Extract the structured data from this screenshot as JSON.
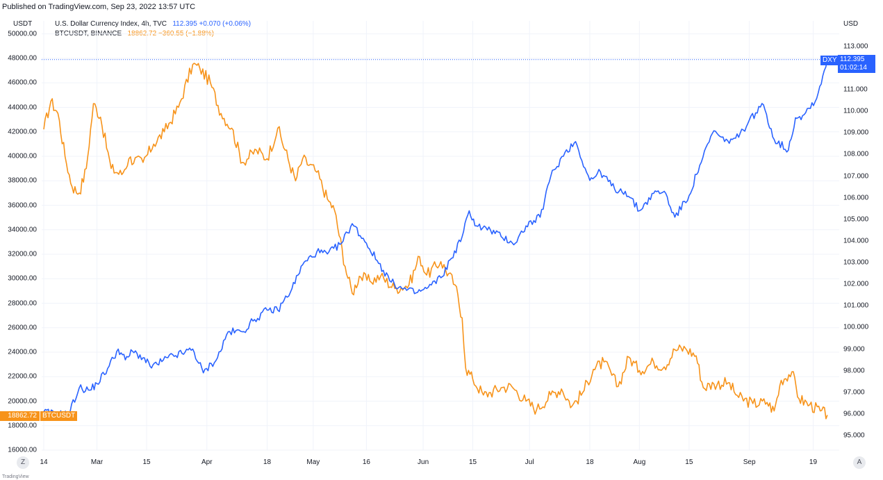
{
  "published": "Published on TradingView.com, Sep 23, 2022 13:57 UTC",
  "footer": "TradingView",
  "unit_left": "USDT",
  "unit_right": "USD",
  "corner_left": "Z",
  "corner_right": "A",
  "legend": {
    "dxy": {
      "name": "U.S. Dollar Currency Index, 4h, TVC",
      "value": "112.395 +0.070 (+0.06%)"
    },
    "btc": {
      "name": "BTCUSDT, BINANCE",
      "value": "18862.72 −360.55 (−1.88%)"
    }
  },
  "badges": {
    "btc_value": "18862.72",
    "btc_name": "BTCUSDT",
    "dxy_name": "DXY",
    "dxy_value": "112.395",
    "dxy_timer": "01:02:14"
  },
  "colors": {
    "dxy": "#2962ff",
    "btc": "#f7931a",
    "grid": "#f0f3fa"
  },
  "chart_data": {
    "type": "line",
    "title": "",
    "x_labels": [
      "14",
      "Mar",
      "15",
      "Apr",
      "18",
      "May",
      "16",
      "Jun",
      "15",
      "Jul",
      "18",
      "Aug",
      "15",
      "Sep",
      "19"
    ],
    "x_dates": [
      "2022-02-14",
      "2022-03-01",
      "2022-03-15",
      "2022-04-01",
      "2022-04-18",
      "2022-05-01",
      "2022-05-16",
      "2022-06-01",
      "2022-06-15",
      "2022-07-01",
      "2022-07-18",
      "2022-08-01",
      "2022-08-15",
      "2022-09-01",
      "2022-09-19"
    ],
    "y_left": {
      "label": "USDT",
      "range": [
        16000,
        50000
      ],
      "ticks": [
        "16000.00",
        "18000.00",
        "20000.00",
        "22000.00",
        "24000.00",
        "26000.00",
        "28000.00",
        "30000.00",
        "32000.00",
        "34000.00",
        "36000.00",
        "38000.00",
        "40000.00",
        "42000.00",
        "44000.00",
        "46000.00",
        "48000.00",
        "50000.00"
      ]
    },
    "y_right": {
      "label": "USD",
      "range": [
        94.5,
        114.5
      ],
      "ticks": [
        "95.000",
        "96.000",
        "97.000",
        "98.000",
        "99.000",
        "100.000",
        "101.000",
        "102.000",
        "103.000",
        "104.000",
        "105.000",
        "106.000",
        "107.000",
        "108.000",
        "109.000",
        "110.000",
        "111.000",
        "112.000",
        "113.000"
      ]
    },
    "series": [
      {
        "name": "BTCUSDT",
        "axis": "left",
        "x": [
          "2022-02-14",
          "2022-02-16",
          "2022-02-18",
          "2022-02-20",
          "2022-02-22",
          "2022-02-24",
          "2022-02-26",
          "2022-02-28",
          "2022-03-02",
          "2022-03-05",
          "2022-03-08",
          "2022-03-10",
          "2022-03-14",
          "2022-03-17",
          "2022-03-20",
          "2022-03-24",
          "2022-03-28",
          "2022-03-30",
          "2022-04-02",
          "2022-04-05",
          "2022-04-08",
          "2022-04-11",
          "2022-04-15",
          "2022-04-18",
          "2022-04-21",
          "2022-04-26",
          "2022-04-28",
          "2022-05-02",
          "2022-05-05",
          "2022-05-07",
          "2022-05-10",
          "2022-05-12",
          "2022-05-14",
          "2022-05-17",
          "2022-05-20",
          "2022-05-24",
          "2022-05-28",
          "2022-05-31",
          "2022-06-02",
          "2022-06-06",
          "2022-06-10",
          "2022-06-12",
          "2022-06-13",
          "2022-06-15",
          "2022-06-18",
          "2022-06-20",
          "2022-06-23",
          "2022-06-26",
          "2022-06-30",
          "2022-07-03",
          "2022-07-07",
          "2022-07-10",
          "2022-07-13",
          "2022-07-16",
          "2022-07-19",
          "2022-07-22",
          "2022-07-26",
          "2022-07-29",
          "2022-08-01",
          "2022-08-05",
          "2022-08-08",
          "2022-08-11",
          "2022-08-14",
          "2022-08-17",
          "2022-08-19",
          "2022-08-22",
          "2022-08-26",
          "2022-08-29",
          "2022-09-02",
          "2022-09-06",
          "2022-09-08",
          "2022-09-10",
          "2022-09-13",
          "2022-09-15",
          "2022-09-18",
          "2022-09-21",
          "2022-09-23"
        ],
        "y": [
          42200,
          44500,
          43500,
          40000,
          37500,
          37000,
          39000,
          44300,
          43200,
          39000,
          38500,
          39800,
          39500,
          41000,
          42000,
          44000,
          47500,
          47200,
          46000,
          43500,
          42300,
          39500,
          40500,
          39800,
          42300,
          38000,
          39800,
          38700,
          36500,
          35600,
          31000,
          28800,
          30200,
          29800,
          30200,
          29200,
          29500,
          31800,
          30300,
          31400,
          29500,
          26800,
          22700,
          21800,
          20500,
          20700,
          21100,
          21200,
          20000,
          19300,
          20500,
          21000,
          19600,
          20700,
          22600,
          23200,
          21200,
          23600,
          22500,
          23200,
          22800,
          24200,
          24300,
          23700,
          21100,
          21400,
          21500,
          20300,
          19800,
          19900,
          19200,
          21700,
          22400,
          20200,
          19700,
          19200,
          18862.72
        ]
      },
      {
        "name": "DXY",
        "axis": "right",
        "x": [
          "2022-02-14",
          "2022-02-17",
          "2022-02-21",
          "2022-02-24",
          "2022-02-27",
          "2022-03-01",
          "2022-03-04",
          "2022-03-07",
          "2022-03-09",
          "2022-03-11",
          "2022-03-14",
          "2022-03-16",
          "2022-03-18",
          "2022-03-21",
          "2022-03-25",
          "2022-03-28",
          "2022-03-31",
          "2022-04-04",
          "2022-04-07",
          "2022-04-11",
          "2022-04-14",
          "2022-04-18",
          "2022-04-21",
          "2022-04-25",
          "2022-04-28",
          "2022-05-02",
          "2022-05-05",
          "2022-05-09",
          "2022-05-12",
          "2022-05-16",
          "2022-05-19",
          "2022-05-23",
          "2022-05-26",
          "2022-05-30",
          "2022-06-02",
          "2022-06-06",
          "2022-06-09",
          "2022-06-12",
          "2022-06-14",
          "2022-06-16",
          "2022-06-20",
          "2022-06-23",
          "2022-06-27",
          "2022-06-30",
          "2022-07-04",
          "2022-07-07",
          "2022-07-11",
          "2022-07-14",
          "2022-07-18",
          "2022-07-21",
          "2022-07-25",
          "2022-07-28",
          "2022-08-01",
          "2022-08-05",
          "2022-08-08",
          "2022-08-11",
          "2022-08-15",
          "2022-08-18",
          "2022-08-22",
          "2022-08-25",
          "2022-08-29",
          "2022-09-01",
          "2022-09-05",
          "2022-09-08",
          "2022-09-12",
          "2022-09-14",
          "2022-09-16",
          "2022-09-20",
          "2022-09-23"
        ],
        "y": [
          96.1,
          96.0,
          96.0,
          97.2,
          97.1,
          97.4,
          98.1,
          99.0,
          98.5,
          98.9,
          98.6,
          98.2,
          98.3,
          98.6,
          98.8,
          99.0,
          97.9,
          98.6,
          99.8,
          99.8,
          100.3,
          100.8,
          100.8,
          101.8,
          102.9,
          103.5,
          103.4,
          103.9,
          104.8,
          103.9,
          103.1,
          102.1,
          101.8,
          101.6,
          101.8,
          102.3,
          103.2,
          104.2,
          105.4,
          104.7,
          104.5,
          104.2,
          103.9,
          104.7,
          105.1,
          107.0,
          108.1,
          108.6,
          106.8,
          107.2,
          106.4,
          106.3,
          105.4,
          106.2,
          106.3,
          105.1,
          106.1,
          107.5,
          109.1,
          108.6,
          108.8,
          109.6,
          110.3,
          108.7,
          108.2,
          109.7,
          109.8,
          110.6,
          112.395
        ]
      }
    ]
  }
}
